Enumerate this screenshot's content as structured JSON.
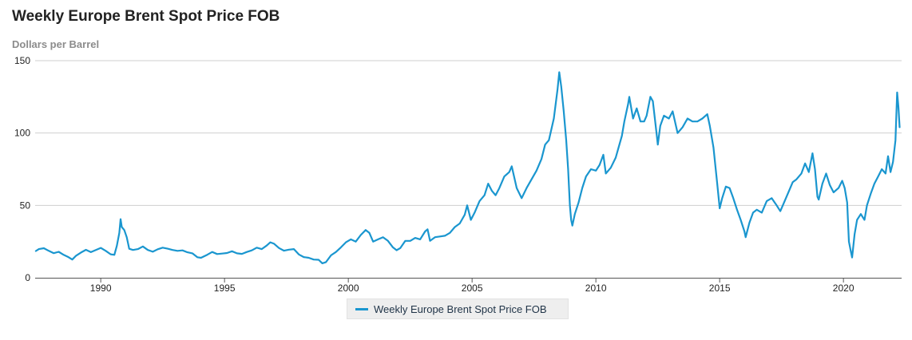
{
  "chart_data": {
    "type": "line",
    "title": "Weekly Europe Brent Spot Price FOB",
    "subtitle": "Dollars per Barrel",
    "xlabel": "",
    "ylabel": "",
    "x_ticks": [
      "1990",
      "1995",
      "2000",
      "2005",
      "2010",
      "2015",
      "2020"
    ],
    "y_ticks": [
      "0",
      "50",
      "100",
      "150"
    ],
    "xlim": [
      1987.35,
      2022.35
    ],
    "ylim": [
      0,
      150
    ],
    "grid": "horizontal",
    "legend_position": "bottom-center",
    "series": [
      {
        "name": "Weekly Europe Brent Spot Price FOB",
        "color": "#1a96cf",
        "points": [
          [
            1987.38,
            18.5
          ],
          [
            1987.5,
            19.8
          ],
          [
            1987.7,
            20.4
          ],
          [
            1987.9,
            18.6
          ],
          [
            1988.1,
            17.0
          ],
          [
            1988.3,
            17.9
          ],
          [
            1988.5,
            15.8
          ],
          [
            1988.7,
            14.2
          ],
          [
            1988.85,
            12.6
          ],
          [
            1989.0,
            15.2
          ],
          [
            1989.2,
            17.4
          ],
          [
            1989.4,
            19.3
          ],
          [
            1989.6,
            17.7
          ],
          [
            1989.8,
            19.2
          ],
          [
            1990.0,
            20.6
          ],
          [
            1990.2,
            18.6
          ],
          [
            1990.4,
            16.2
          ],
          [
            1990.55,
            15.8
          ],
          [
            1990.65,
            22.0
          ],
          [
            1990.75,
            31.0
          ],
          [
            1990.8,
            40.5
          ],
          [
            1990.85,
            35.0
          ],
          [
            1990.95,
            33.0
          ],
          [
            1991.05,
            28.0
          ],
          [
            1991.15,
            20.0
          ],
          [
            1991.3,
            19.2
          ],
          [
            1991.5,
            19.8
          ],
          [
            1991.7,
            21.6
          ],
          [
            1991.9,
            19.2
          ],
          [
            1992.1,
            18.0
          ],
          [
            1992.3,
            19.7
          ],
          [
            1992.5,
            20.8
          ],
          [
            1992.7,
            20.1
          ],
          [
            1992.9,
            19.2
          ],
          [
            1993.1,
            18.6
          ],
          [
            1993.3,
            18.9
          ],
          [
            1993.5,
            17.6
          ],
          [
            1993.7,
            16.9
          ],
          [
            1993.9,
            14.2
          ],
          [
            1994.05,
            13.8
          ],
          [
            1994.3,
            15.9
          ],
          [
            1994.5,
            17.8
          ],
          [
            1994.7,
            16.4
          ],
          [
            1994.9,
            16.7
          ],
          [
            1995.1,
            17.1
          ],
          [
            1995.3,
            18.3
          ],
          [
            1995.5,
            16.9
          ],
          [
            1995.7,
            16.5
          ],
          [
            1995.9,
            17.8
          ],
          [
            1996.1,
            18.9
          ],
          [
            1996.3,
            20.8
          ],
          [
            1996.5,
            19.8
          ],
          [
            1996.7,
            22.2
          ],
          [
            1996.85,
            24.5
          ],
          [
            1997.0,
            23.5
          ],
          [
            1997.2,
            20.5
          ],
          [
            1997.4,
            18.7
          ],
          [
            1997.6,
            19.4
          ],
          [
            1997.8,
            19.8
          ],
          [
            1998.0,
            16.1
          ],
          [
            1998.2,
            14.3
          ],
          [
            1998.4,
            13.8
          ],
          [
            1998.6,
            12.6
          ],
          [
            1998.8,
            12.4
          ],
          [
            1998.95,
            10.0
          ],
          [
            1999.1,
            10.8
          ],
          [
            1999.3,
            15.5
          ],
          [
            1999.5,
            17.8
          ],
          [
            1999.7,
            21.0
          ],
          [
            1999.9,
            24.5
          ],
          [
            2000.1,
            26.5
          ],
          [
            2000.3,
            25.0
          ],
          [
            2000.5,
            29.5
          ],
          [
            2000.7,
            33.0
          ],
          [
            2000.85,
            31.0
          ],
          [
            2001.0,
            25.0
          ],
          [
            2001.2,
            26.5
          ],
          [
            2001.4,
            28.0
          ],
          [
            2001.6,
            25.5
          ],
          [
            2001.8,
            21.0
          ],
          [
            2001.95,
            19.0
          ],
          [
            2002.1,
            20.5
          ],
          [
            2002.3,
            25.5
          ],
          [
            2002.5,
            25.5
          ],
          [
            2002.7,
            27.5
          ],
          [
            2002.9,
            26.5
          ],
          [
            2003.1,
            32.0
          ],
          [
            2003.2,
            33.5
          ],
          [
            2003.3,
            25.5
          ],
          [
            2003.5,
            28.0
          ],
          [
            2003.7,
            28.5
          ],
          [
            2003.9,
            29.0
          ],
          [
            2004.1,
            31.0
          ],
          [
            2004.3,
            35.0
          ],
          [
            2004.5,
            37.5
          ],
          [
            2004.7,
            43.5
          ],
          [
            2004.8,
            50.0
          ],
          [
            2004.95,
            40.0
          ],
          [
            2005.1,
            45.0
          ],
          [
            2005.3,
            53.0
          ],
          [
            2005.5,
            57.0
          ],
          [
            2005.65,
            65.0
          ],
          [
            2005.8,
            60.0
          ],
          [
            2005.95,
            57.0
          ],
          [
            2006.1,
            62.0
          ],
          [
            2006.3,
            70.0
          ],
          [
            2006.5,
            73.0
          ],
          [
            2006.6,
            77.0
          ],
          [
            2006.8,
            62.0
          ],
          [
            2007.0,
            55.0
          ],
          [
            2007.2,
            62.0
          ],
          [
            2007.4,
            68.0
          ],
          [
            2007.6,
            74.0
          ],
          [
            2007.8,
            82.0
          ],
          [
            2007.95,
            92.0
          ],
          [
            2008.1,
            95.0
          ],
          [
            2008.3,
            110.0
          ],
          [
            2008.45,
            130.0
          ],
          [
            2008.52,
            142.0
          ],
          [
            2008.6,
            132.0
          ],
          [
            2008.7,
            115.0
          ],
          [
            2008.8,
            95.0
          ],
          [
            2008.88,
            75.0
          ],
          [
            2008.95,
            50.0
          ],
          [
            2009.0,
            40.0
          ],
          [
            2009.05,
            36.0
          ],
          [
            2009.15,
            44.0
          ],
          [
            2009.3,
            52.0
          ],
          [
            2009.45,
            62.0
          ],
          [
            2009.6,
            70.0
          ],
          [
            2009.8,
            75.0
          ],
          [
            2010.0,
            74.0
          ],
          [
            2010.15,
            78.0
          ],
          [
            2010.3,
            85.0
          ],
          [
            2010.4,
            72.0
          ],
          [
            2010.6,
            76.0
          ],
          [
            2010.8,
            83.0
          ],
          [
            2010.95,
            92.0
          ],
          [
            2011.05,
            98.0
          ],
          [
            2011.15,
            108.0
          ],
          [
            2011.3,
            120.0
          ],
          [
            2011.35,
            125.0
          ],
          [
            2011.5,
            110.0
          ],
          [
            2011.65,
            117.0
          ],
          [
            2011.8,
            108.0
          ],
          [
            2011.95,
            108.0
          ],
          [
            2012.05,
            112.0
          ],
          [
            2012.2,
            125.0
          ],
          [
            2012.3,
            122.0
          ],
          [
            2012.45,
            100.0
          ],
          [
            2012.5,
            92.0
          ],
          [
            2012.6,
            105.0
          ],
          [
            2012.75,
            112.0
          ],
          [
            2012.95,
            110.0
          ],
          [
            2013.1,
            115.0
          ],
          [
            2013.3,
            100.0
          ],
          [
            2013.5,
            104.0
          ],
          [
            2013.7,
            110.0
          ],
          [
            2013.9,
            108.0
          ],
          [
            2014.1,
            108.0
          ],
          [
            2014.3,
            110.0
          ],
          [
            2014.5,
            113.0
          ],
          [
            2014.6,
            105.0
          ],
          [
            2014.75,
            90.0
          ],
          [
            2014.9,
            65.0
          ],
          [
            2015.0,
            48.0
          ],
          [
            2015.1,
            55.0
          ],
          [
            2015.25,
            63.0
          ],
          [
            2015.4,
            62.0
          ],
          [
            2015.55,
            55.0
          ],
          [
            2015.7,
            47.0
          ],
          [
            2015.85,
            40.0
          ],
          [
            2016.0,
            32.0
          ],
          [
            2016.05,
            28.0
          ],
          [
            2016.2,
            38.0
          ],
          [
            2016.35,
            45.0
          ],
          [
            2016.5,
            47.0
          ],
          [
            2016.7,
            45.0
          ],
          [
            2016.9,
            53.0
          ],
          [
            2017.1,
            55.0
          ],
          [
            2017.3,
            50.0
          ],
          [
            2017.45,
            46.0
          ],
          [
            2017.6,
            52.0
          ],
          [
            2017.8,
            60.0
          ],
          [
            2017.95,
            66.0
          ],
          [
            2018.1,
            68.0
          ],
          [
            2018.3,
            72.0
          ],
          [
            2018.45,
            79.0
          ],
          [
            2018.6,
            73.0
          ],
          [
            2018.75,
            86.0
          ],
          [
            2018.85,
            75.0
          ],
          [
            2018.95,
            56.0
          ],
          [
            2019.0,
            54.0
          ],
          [
            2019.15,
            65.0
          ],
          [
            2019.3,
            72.0
          ],
          [
            2019.45,
            64.0
          ],
          [
            2019.6,
            59.0
          ],
          [
            2019.8,
            62.0
          ],
          [
            2019.95,
            67.0
          ],
          [
            2020.05,
            62.0
          ],
          [
            2020.15,
            52.0
          ],
          [
            2020.22,
            25.0
          ],
          [
            2020.3,
            18.0
          ],
          [
            2020.35,
            14.0
          ],
          [
            2020.45,
            30.0
          ],
          [
            2020.55,
            40.0
          ],
          [
            2020.7,
            44.0
          ],
          [
            2020.85,
            40.0
          ],
          [
            2020.95,
            50.0
          ],
          [
            2021.1,
            58.0
          ],
          [
            2021.25,
            65.0
          ],
          [
            2021.4,
            70.0
          ],
          [
            2021.55,
            75.0
          ],
          [
            2021.7,
            72.0
          ],
          [
            2021.8,
            84.0
          ],
          [
            2021.9,
            73.0
          ],
          [
            2022.0,
            80.0
          ],
          [
            2022.1,
            95.0
          ],
          [
            2022.17,
            128.0
          ],
          [
            2022.22,
            118.0
          ],
          [
            2022.27,
            104.0
          ]
        ]
      }
    ]
  }
}
